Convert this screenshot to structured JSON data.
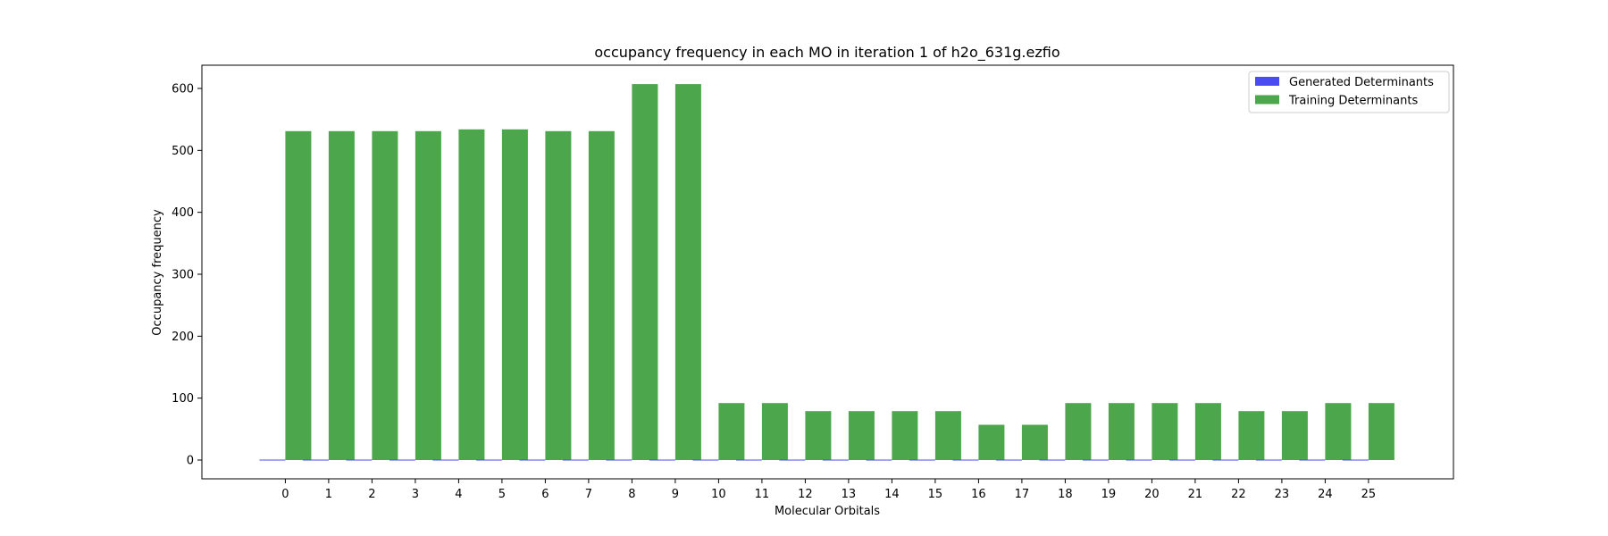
{
  "chart_data": {
    "type": "bar",
    "title": "occupancy frequency in each MO in iteration 1 of h2o_631g.ezfio",
    "xlabel": "Molecular Orbitals",
    "ylabel": "Occupancy frequency",
    "categories": [
      "0",
      "1",
      "2",
      "3",
      "4",
      "5",
      "6",
      "7",
      "8",
      "9",
      "10",
      "11",
      "12",
      "13",
      "14",
      "15",
      "16",
      "17",
      "18",
      "19",
      "20",
      "21",
      "22",
      "23",
      "24",
      "25"
    ],
    "ylim": [
      -32,
      635
    ],
    "yticks": [
      0,
      100,
      200,
      300,
      400,
      500,
      600
    ],
    "grid": false,
    "legend_position": "top-right",
    "series": [
      {
        "name": "Generated Determinants",
        "color": "#4b4bf2",
        "values": [
          0,
          0,
          0,
          0,
          0,
          0,
          0,
          0,
          0,
          0,
          0,
          0,
          0,
          0,
          0,
          0,
          0,
          0,
          0,
          0,
          0,
          0,
          0,
          0,
          0,
          0
        ]
      },
      {
        "name": "Training Determinants",
        "color": "#4ca64c",
        "values": [
          531,
          531,
          531,
          531,
          534,
          534,
          531,
          531,
          607,
          607,
          92,
          92,
          79,
          79,
          79,
          79,
          57,
          57,
          92,
          92,
          92,
          92,
          79,
          79,
          92,
          92
        ]
      }
    ]
  }
}
